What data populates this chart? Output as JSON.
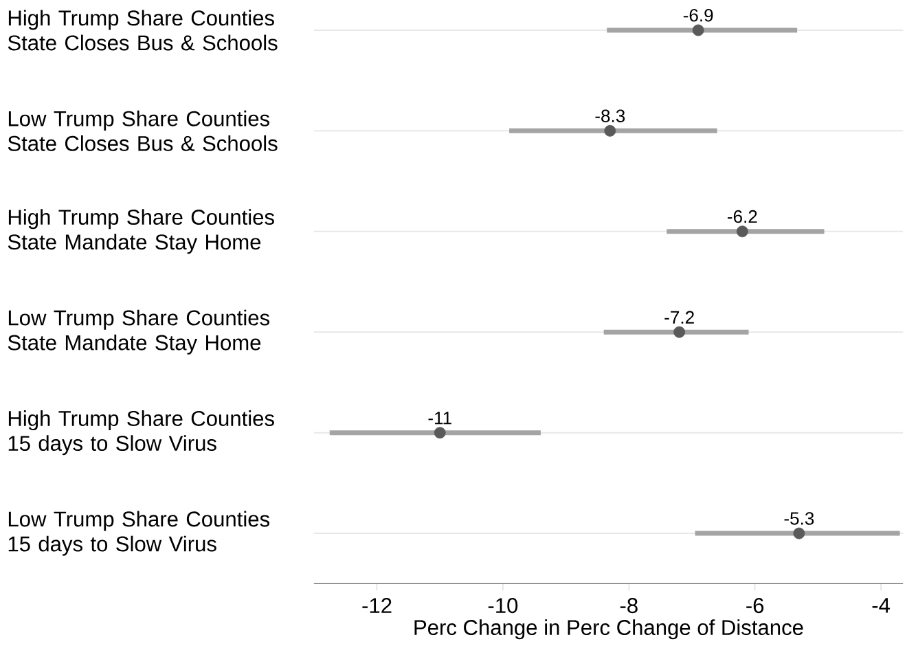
{
  "chart_data": {
    "type": "scatter",
    "orientation": "horizontal",
    "categories": [
      "High Trump Share Counties State Closes Bus & Schools",
      "Low Trump Share Counties State Closes Bus & Schools",
      "High Trump Share Counties State Mandate Stay Home",
      "Low Trump Share Counties State Mandate Stay Home",
      "High Trump Share Counties 15 days to Slow Virus",
      "Low Trump Share Counties 15 days to Slow Virus"
    ],
    "values": [
      -6.9,
      -8.3,
      -6.2,
      -7.2,
      -11,
      -5.3
    ],
    "errors": [
      [
        -8.35,
        -5.33
      ],
      [
        -9.9,
        -6.6
      ],
      [
        -7.4,
        -4.9
      ],
      [
        -8.4,
        -6.1
      ],
      [
        -12.75,
        -9.4
      ],
      [
        -6.95,
        -3.7
      ]
    ],
    "color": "#5a5a5a",
    "marker": "circle",
    "data_labels": true,
    "grid": "y",
    "xlabel": "Perc Change in Perc Change of Distance",
    "xlim": [
      -13,
      -3.65
    ],
    "xticks": [
      -12,
      -10,
      -8,
      -6,
      -4
    ]
  }
}
